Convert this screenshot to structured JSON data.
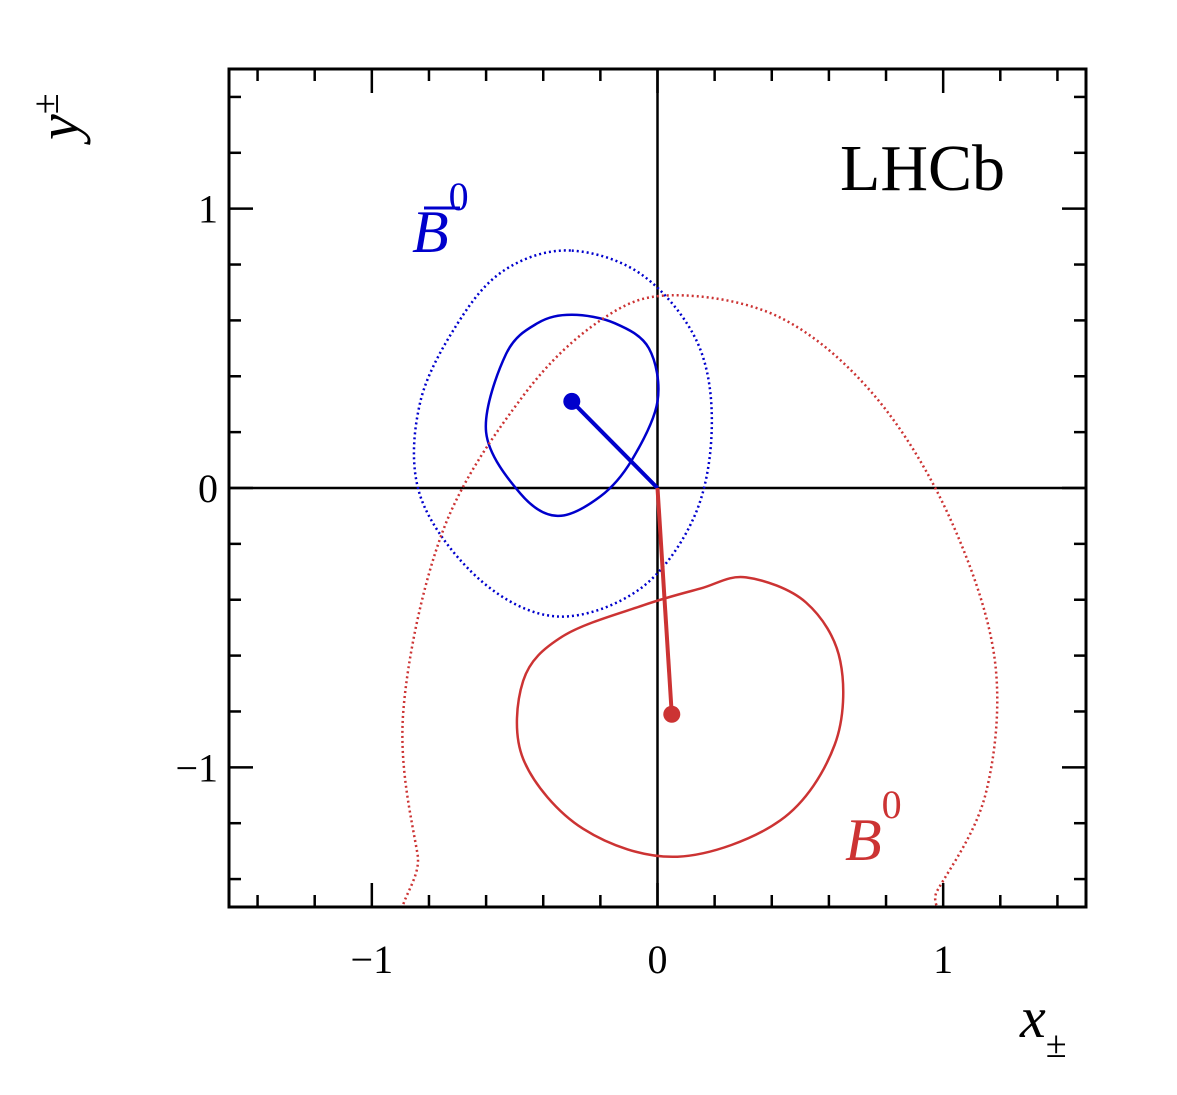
{
  "chart_data": {
    "type": "scatter",
    "title": "",
    "watermark": "LHCb",
    "xlabel": {
      "main": "x",
      "sub": "±"
    },
    "ylabel": {
      "main": "y",
      "sub": "±"
    },
    "xlim": [
      -1.5,
      1.5
    ],
    "ylim": [
      -1.5,
      1.5
    ],
    "xticks": [
      -1,
      0,
      1
    ],
    "yticks": [
      -1,
      0,
      1
    ],
    "xtick_labels": [
      "−1",
      "0",
      "1"
    ],
    "ytick_labels": [
      "−1",
      "0",
      "1"
    ],
    "grid": false,
    "series": [
      {
        "name": "B̄⁰",
        "label_main": "B",
        "label_sup": "0",
        "label_bar": true,
        "color": "#0000cc",
        "point": [
          -0.3,
          0.31
        ],
        "contour_inner": [
          [
            -0.3,
            0.62
          ],
          [
            -0.15,
            0.59
          ],
          [
            -0.03,
            0.5
          ],
          [
            0.0,
            0.31
          ],
          [
            -0.09,
            0.1
          ],
          [
            -0.2,
            -0.03
          ],
          [
            -0.35,
            -0.1
          ],
          [
            -0.48,
            -0.02
          ],
          [
            -0.6,
            0.2
          ],
          [
            -0.53,
            0.48
          ],
          [
            -0.42,
            0.59
          ]
        ],
        "contour_outer": [
          [
            -0.3,
            0.85
          ],
          [
            -0.05,
            0.76
          ],
          [
            0.14,
            0.52
          ],
          [
            0.19,
            0.22
          ],
          [
            0.13,
            -0.1
          ],
          [
            -0.06,
            -0.36
          ],
          [
            -0.35,
            -0.46
          ],
          [
            -0.62,
            -0.33
          ],
          [
            -0.83,
            -0.03
          ],
          [
            -0.83,
            0.31
          ],
          [
            -0.68,
            0.62
          ],
          [
            -0.52,
            0.79
          ]
        ]
      },
      {
        "name": "B⁰",
        "label_main": "B",
        "label_sup": "0",
        "label_bar": false,
        "color": "#cc3333",
        "point": [
          0.05,
          -0.81
        ],
        "contour_inner": [
          [
            0.31,
            -0.32
          ],
          [
            0.52,
            -0.41
          ],
          [
            0.64,
            -0.62
          ],
          [
            0.62,
            -0.92
          ],
          [
            0.43,
            -1.19
          ],
          [
            0.07,
            -1.32
          ],
          [
            -0.26,
            -1.22
          ],
          [
            -0.47,
            -0.97
          ],
          [
            -0.47,
            -0.69
          ],
          [
            -0.33,
            -0.53
          ],
          [
            -0.05,
            -0.42
          ],
          [
            0.15,
            -0.36
          ]
        ],
        "contour_outer": [
          [
            0.05,
            0.69
          ],
          [
            0.43,
            0.61
          ],
          [
            0.76,
            0.33
          ],
          [
            1.02,
            -0.1
          ],
          [
            1.18,
            -0.61
          ],
          [
            1.15,
            -1.09
          ],
          [
            0.98,
            -1.44
          ],
          [
            0.85,
            -1.62
          ],
          [
            -0.75,
            -1.62
          ],
          [
            -0.84,
            -1.31
          ],
          [
            -0.89,
            -0.8
          ],
          [
            -0.75,
            -0.15
          ],
          [
            -0.47,
            0.33
          ],
          [
            -0.2,
            0.6
          ]
        ]
      }
    ]
  }
}
